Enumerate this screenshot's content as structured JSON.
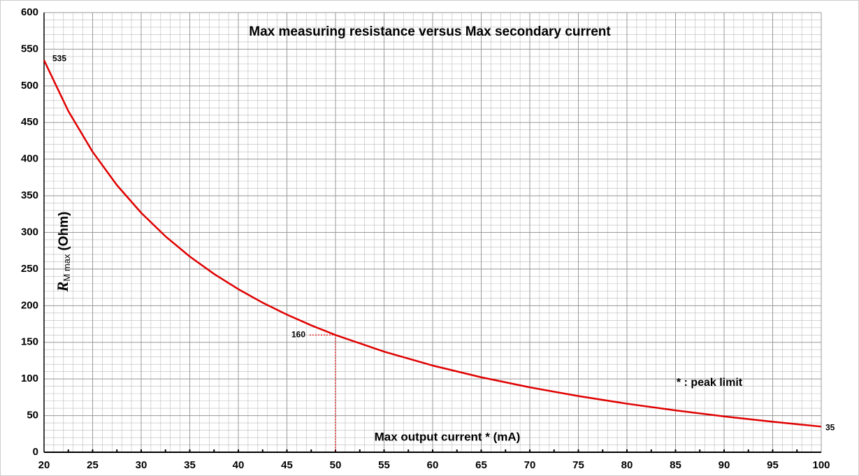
{
  "chart_data": {
    "type": "line",
    "title": "Max measuring resistance versus Max secondary current",
    "x_label": "Max output current * (mA)",
    "y_label": {
      "main": "R",
      "sub": "M max",
      "unit": "(Ohm)"
    },
    "note": "* : peak limit",
    "x": [
      20,
      22.5,
      25,
      27.5,
      30,
      32.5,
      35,
      37.5,
      40,
      42.5,
      45,
      47.5,
      50,
      55,
      60,
      65,
      70,
      75,
      80,
      85,
      90,
      95,
      100
    ],
    "series": [
      {
        "color": "#e00000",
        "values": [
          535,
          465.6,
          410,
          364.5,
          326.7,
          294.6,
          267.1,
          243.3,
          222.5,
          204.1,
          187.8,
          173.2,
          160,
          137.3,
          118.3,
          102.3,
          88.6,
          76.7,
          66.25,
          57.1,
          48.9,
          41.6,
          35
        ]
      }
    ],
    "reference": {
      "x": 50,
      "y": 160
    },
    "xlim": [
      20,
      100
    ],
    "xticks": [
      20,
      25,
      30,
      35,
      40,
      45,
      50,
      55,
      60,
      65,
      70,
      75,
      80,
      85,
      90,
      95,
      100
    ],
    "ylim": [
      0,
      600
    ],
    "yticks": [
      0,
      50,
      100,
      150,
      200,
      250,
      300,
      350,
      400,
      450,
      500,
      550,
      600
    ],
    "grid": true
  }
}
